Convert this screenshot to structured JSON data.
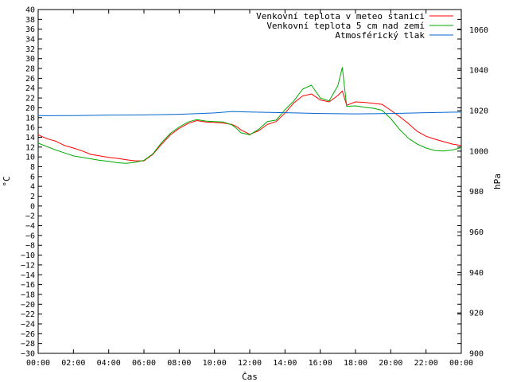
{
  "chart_data": {
    "type": "line",
    "title": "",
    "xlabel": "Čas",
    "ylabel_left": "°C",
    "ylabel_right": "hPa",
    "x_ticks": [
      "00:00",
      "02:00",
      "04:00",
      "06:00",
      "08:00",
      "10:00",
      "12:00",
      "14:00",
      "16:00",
      "18:00",
      "20:00",
      "22:00",
      "00:00"
    ],
    "x_range_hours": [
      0,
      24
    ],
    "ylim_left": [
      -30,
      40
    ],
    "ylim_right": [
      900,
      1070
    ],
    "y_left_ticks": [
      40,
      38,
      36,
      34,
      32,
      30,
      28,
      26,
      24,
      22,
      20,
      18,
      16,
      14,
      12,
      10,
      8,
      6,
      4,
      2,
      0,
      -2,
      -4,
      -6,
      -8,
      -10,
      -12,
      -14,
      -16,
      -18,
      -20,
      -22,
      -24,
      -26,
      -28,
      -30
    ],
    "y_right_ticks": [
      1060,
      1040,
      1020,
      1000,
      980,
      960,
      940,
      920,
      900
    ],
    "grid": false,
    "legend_position": "top-right",
    "series": [
      {
        "name": "Venkovní teplota v meteo stanici",
        "axis": "left",
        "color": "#ff0000",
        "x": [
          0,
          0.5,
          1,
          1.5,
          2,
          2.5,
          3,
          3.5,
          4,
          4.5,
          5,
          5.5,
          6,
          6.5,
          7,
          7.5,
          8,
          8.5,
          9,
          9.5,
          10,
          10.5,
          11,
          11.25,
          11.5,
          12,
          12.5,
          13,
          13.5,
          14,
          14.5,
          15,
          15.5,
          16,
          16.5,
          17,
          17.25,
          17.5,
          18,
          18.5,
          19,
          19.5,
          20,
          20.5,
          21,
          21.5,
          22,
          22.5,
          23,
          23.5,
          24
        ],
        "values": [
          14.5,
          13.7,
          13.2,
          12.3,
          11.8,
          11.2,
          10.5,
          10.2,
          9.9,
          9.7,
          9.4,
          9.2,
          9.2,
          10.5,
          12.6,
          14.5,
          15.8,
          16.8,
          17.4,
          17.1,
          17.0,
          16.9,
          16.6,
          16.2,
          15.5,
          14.6,
          15.3,
          16.6,
          17.2,
          18.9,
          21.0,
          22.4,
          22.8,
          21.6,
          21.2,
          22.5,
          23.4,
          20.5,
          21.2,
          21.1,
          20.9,
          20.7,
          19.5,
          18.2,
          16.8,
          15.2,
          14.2,
          13.6,
          13.1,
          12.6,
          12.3
        ]
      },
      {
        "name": "Venkovní teplota 5 cm nad zemí",
        "axis": "left",
        "color": "#00aa00",
        "x": [
          0,
          0.5,
          1,
          1.5,
          2,
          2.5,
          3,
          3.5,
          4,
          4.5,
          5,
          5.5,
          6,
          6.5,
          7,
          7.5,
          8,
          8.5,
          9,
          9.5,
          10,
          10.5,
          11,
          11.25,
          11.5,
          12,
          12.5,
          13,
          13.5,
          14,
          14.5,
          15,
          15.5,
          16,
          16.5,
          17,
          17.25,
          17.5,
          18,
          18.5,
          19,
          19.5,
          20,
          20.5,
          21,
          21.5,
          22,
          22.5,
          23,
          23.5,
          24
        ],
        "values": [
          12.8,
          12.1,
          11.4,
          10.8,
          10.2,
          9.9,
          9.6,
          9.3,
          9.1,
          8.8,
          8.7,
          8.9,
          9.3,
          10.6,
          12.9,
          14.8,
          16.1,
          17.1,
          17.6,
          17.3,
          17.2,
          17.1,
          16.5,
          15.8,
          14.9,
          14.5,
          15.6,
          17.2,
          17.5,
          19.6,
          21.4,
          23.8,
          24.6,
          22.0,
          21.4,
          24.5,
          28.2,
          20.3,
          20.4,
          20.1,
          19.9,
          19.5,
          17.8,
          15.6,
          13.8,
          12.6,
          11.8,
          11.3,
          11.2,
          11.4,
          11.9
        ]
      },
      {
        "name": "Atmosférický tlak",
        "axis": "right",
        "color": "#0066cc",
        "x": [
          0,
          2,
          4,
          6,
          8,
          10,
          11,
          12,
          14,
          16,
          18,
          20,
          22,
          24
        ],
        "values": [
          1017.5,
          1017.6,
          1017.8,
          1017.9,
          1018.2,
          1018.9,
          1019.6,
          1019.3,
          1019.0,
          1018.6,
          1018.4,
          1018.6,
          1019.0,
          1019.3
        ]
      }
    ]
  }
}
